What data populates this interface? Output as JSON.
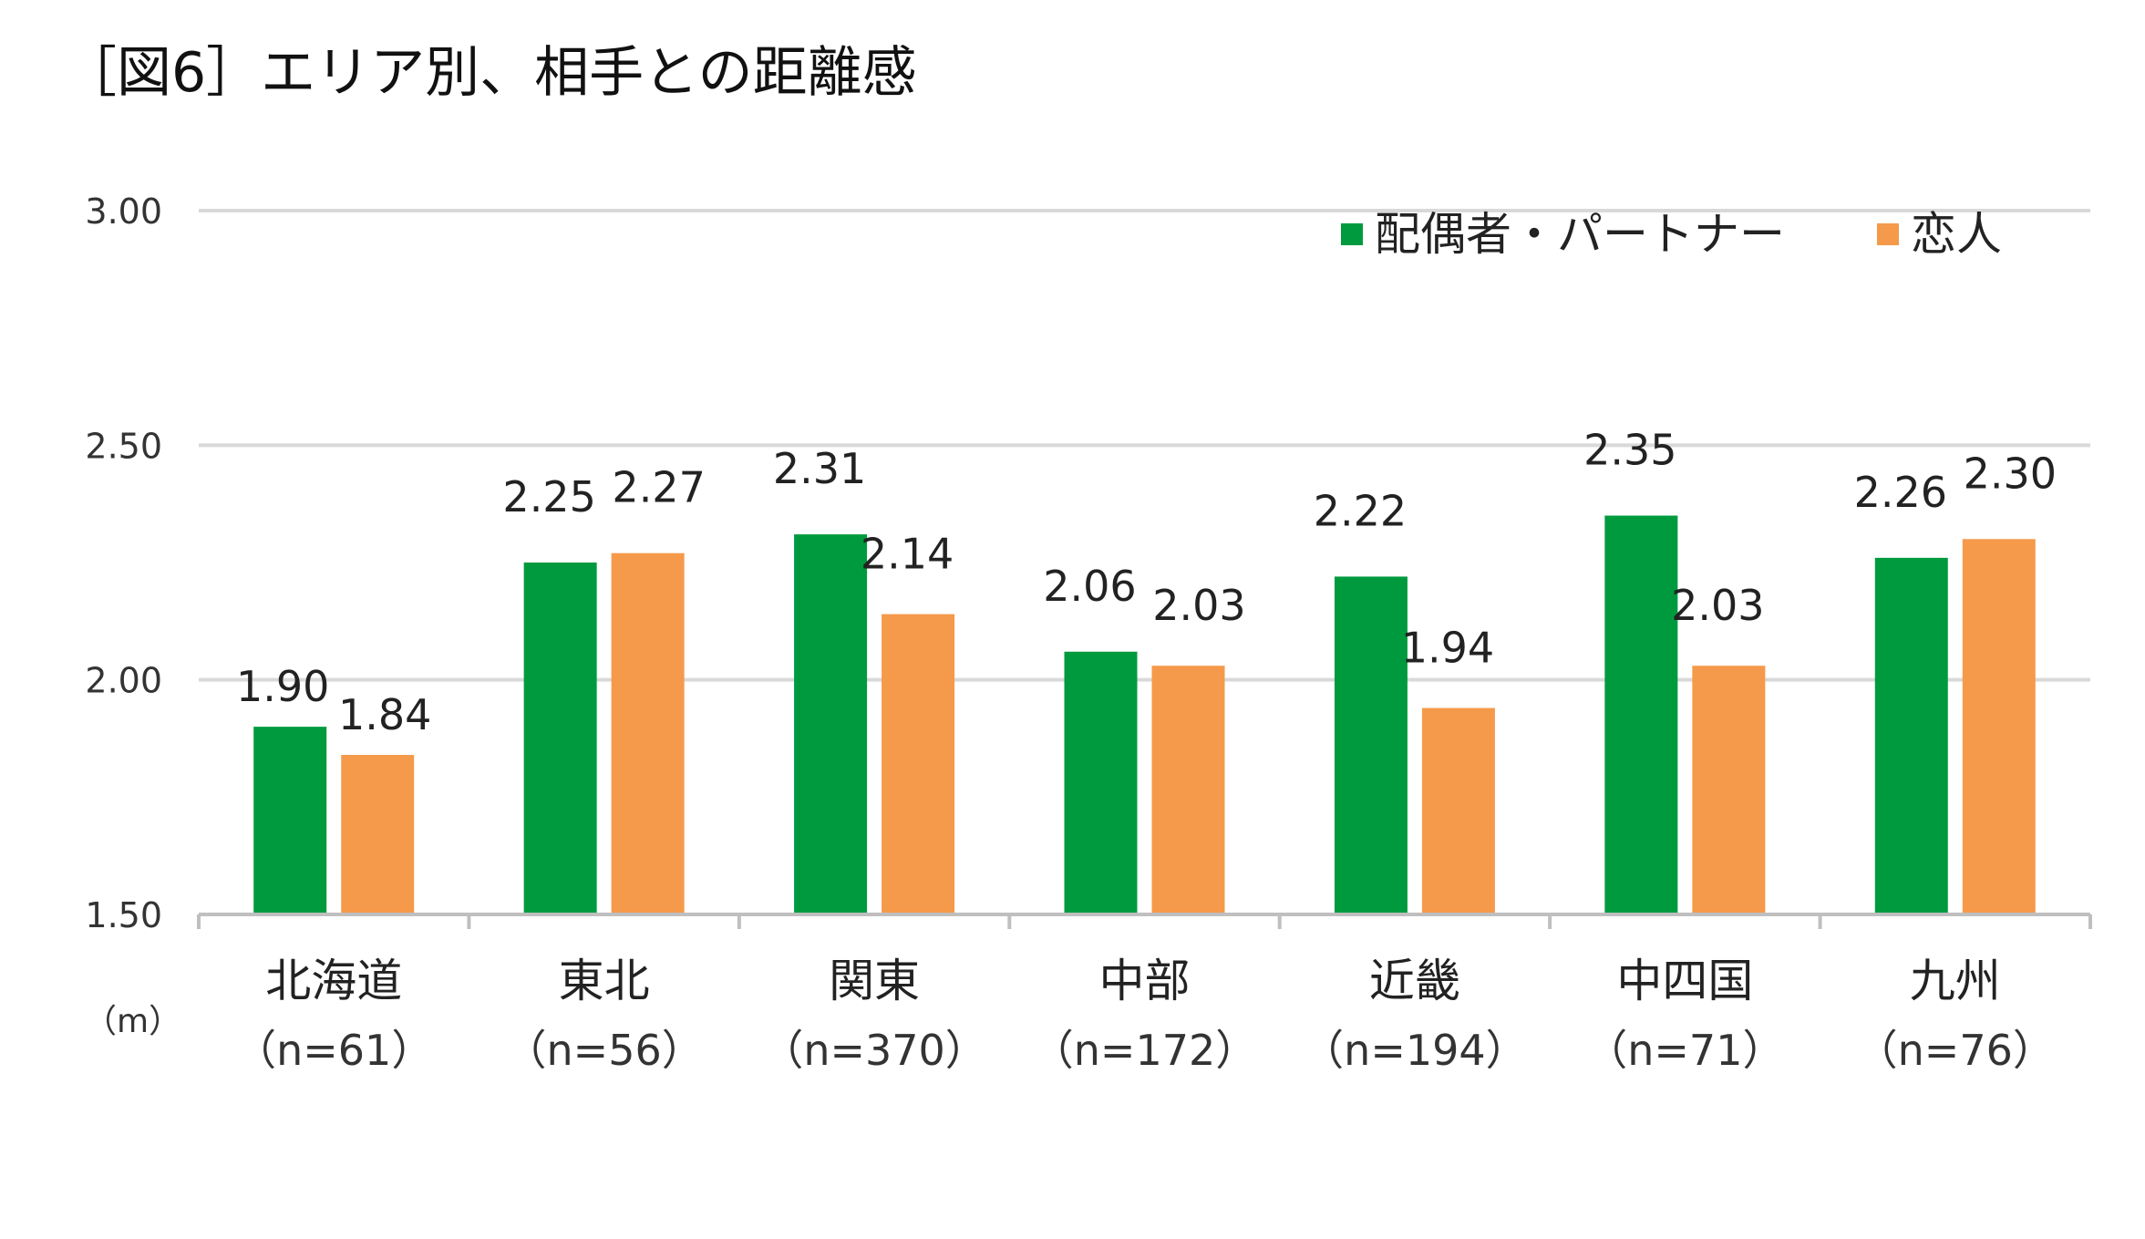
{
  "chart_data": {
    "type": "bar",
    "title": "［図6］エリア別、相手との距離感",
    "unit_label": "（m）",
    "ylim": [
      1.5,
      3.0
    ],
    "yticks": [
      "3.00",
      "2.50",
      "2.00",
      "1.50"
    ],
    "grid": true,
    "legend_position": "top-right",
    "categories": [
      "北海道",
      "東北",
      "関東",
      "中部",
      "近畿",
      "中四国",
      "九州"
    ],
    "sample_sizes": [
      "（n=61）",
      "（n=56）",
      "（n=370）",
      "（n=172）",
      "（n=194）",
      "（n=71）",
      "（n=76）"
    ],
    "series": [
      {
        "name": "配偶者・パートナー",
        "color": "#009a3e",
        "values": [
          1.9,
          2.25,
          2.31,
          2.06,
          2.22,
          2.35,
          2.26
        ],
        "labels": [
          "1.90",
          "2.25",
          "2.31",
          "2.06",
          "2.22",
          "2.35",
          "2.26"
        ]
      },
      {
        "name": "恋人",
        "color": "#f59a4b",
        "values": [
          1.84,
          2.27,
          2.14,
          2.03,
          1.94,
          2.03,
          2.3
        ],
        "labels": [
          "1.84",
          "2.27",
          "2.14",
          "2.03",
          "1.94",
          "2.03",
          "2.30"
        ]
      }
    ]
  }
}
